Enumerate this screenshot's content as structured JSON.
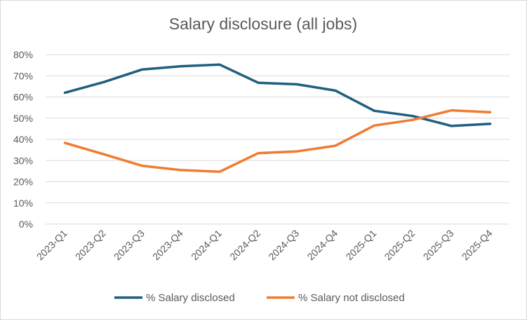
{
  "chart_data": {
    "type": "line",
    "title": "Salary disclosure (all jobs)",
    "xlabel": "",
    "ylabel": "",
    "ylim": [
      0,
      80
    ],
    "ytick_labels": [
      "0%",
      "10%",
      "20%",
      "30%",
      "40%",
      "50%",
      "60%",
      "70%",
      "80%"
    ],
    "grid": true,
    "legend_position": "bottom",
    "categories": [
      "2023-Q1",
      "2023-Q2",
      "2023-Q3",
      "2023-Q4",
      "2024-Q1",
      "2024-Q2",
      "2024-Q3",
      "2024-Q4",
      "2025-Q1",
      "2025-Q2",
      "2025-Q3",
      "2025-Q4"
    ],
    "series": [
      {
        "name": "% Salary disclosed",
        "color": "#1f5f7f",
        "values": [
          62,
          67,
          73,
          74.5,
          75.3,
          66.7,
          66,
          63,
          53.5,
          51,
          46.3,
          47.3
        ]
      },
      {
        "name": "% Salary not disclosed",
        "color": "#f07b31",
        "values": [
          38.3,
          33,
          27.5,
          25.5,
          24.7,
          33.5,
          34.3,
          37,
          46.5,
          49.2,
          53.7,
          52.8
        ]
      }
    ]
  }
}
